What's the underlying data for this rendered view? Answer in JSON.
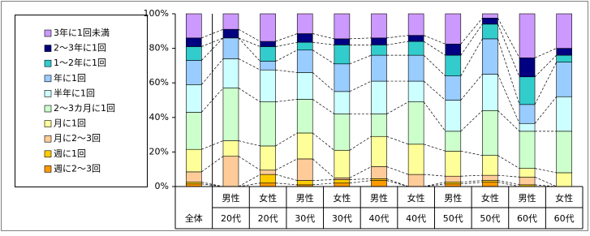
{
  "chart_data": {
    "type": "stacked_bar_100",
    "categories": [
      [
        "全体"
      ],
      [
        "男性",
        "20代"
      ],
      [
        "女性",
        "20代"
      ],
      [
        "男性",
        "30代"
      ],
      [
        "女性",
        "30代"
      ],
      [
        "男性",
        "40代"
      ],
      [
        "女性",
        "40代"
      ],
      [
        "男性",
        "50代"
      ],
      [
        "女性",
        "50代"
      ],
      [
        "男性",
        "60代"
      ],
      [
        "女性",
        "60代"
      ]
    ],
    "series": [
      {
        "name": "週に2～3回",
        "color": "#ff9900",
        "values": [
          1.5,
          0,
          2,
          1,
          2,
          3.5,
          0,
          1.5,
          2.5,
          0,
          0
        ]
      },
      {
        "name": "週に1回",
        "color": "#ffcc00",
        "values": [
          1,
          0,
          5,
          2.5,
          2,
          1,
          0,
          1,
          1,
          1,
          0
        ]
      },
      {
        "name": "月に2～3回",
        "color": "#ffcc99",
        "values": [
          6,
          17.5,
          2.5,
          12.5,
          1,
          7,
          7,
          3.5,
          3,
          4.5,
          0
        ]
      },
      {
        "name": "月に1回",
        "color": "#ffff99",
        "values": [
          13,
          9,
          14,
          15,
          16,
          17.5,
          17.5,
          14.5,
          11.5,
          5,
          8
        ]
      },
      {
        "name": "2～3カ月に1回",
        "color": "#ccffcc",
        "values": [
          21.5,
          30.5,
          25.5,
          19.5,
          21,
          13,
          24.5,
          11.5,
          26,
          21.5,
          24
        ]
      },
      {
        "name": "半年に1回",
        "color": "#ccffff",
        "values": [
          16,
          17,
          18.5,
          15.5,
          13,
          19,
          12,
          18,
          21,
          4.5,
          20
        ]
      },
      {
        "name": "年に1回",
        "color": "#99ccff",
        "values": [
          14,
          12,
          5,
          13,
          16,
          15,
          15,
          14,
          20.5,
          11,
          20
        ]
      },
      {
        "name": "1～2年に1回",
        "color": "#33cccc",
        "values": [
          8,
          0,
          8.5,
          4.5,
          11,
          6,
          8,
          12,
          8.5,
          16,
          4
        ]
      },
      {
        "name": "2～3年に1回",
        "color": "#000080",
        "values": [
          5,
          5,
          3,
          5,
          3.5,
          4,
          3.5,
          6.5,
          3.5,
          11,
          4
        ]
      },
      {
        "name": "3年に1回未満",
        "color": "#cc99ff",
        "values": [
          14,
          9,
          16,
          11.5,
          14.5,
          14,
          12.5,
          17.5,
          2.5,
          25.5,
          20
        ]
      }
    ],
    "ylim": [
      0,
      100
    ],
    "yticks": [
      {
        "value": 0,
        "label": "0%"
      },
      {
        "value": 20,
        "label": "20%"
      },
      {
        "value": 40,
        "label": "40%"
      },
      {
        "value": 60,
        "label": "60%"
      },
      {
        "value": 80,
        "label": "80%"
      },
      {
        "value": 100,
        "label": "100%"
      }
    ],
    "legend": "left"
  }
}
